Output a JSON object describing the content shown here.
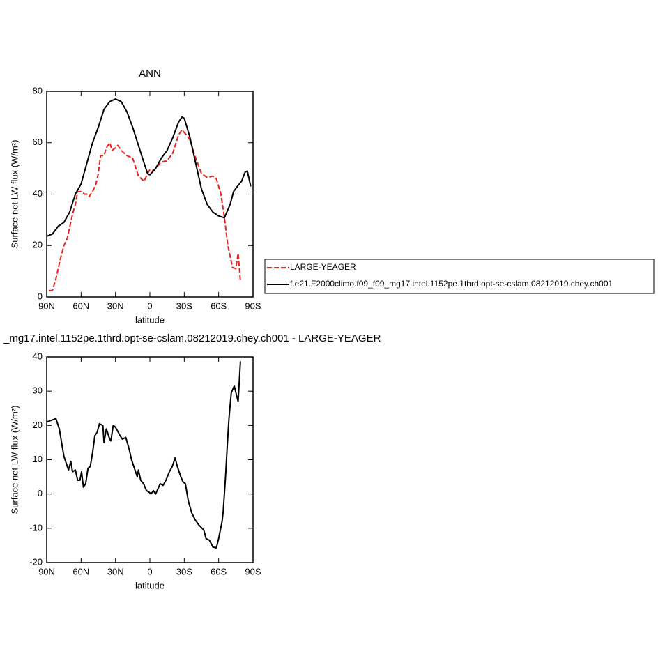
{
  "chart_data": [
    {
      "type": "line",
      "title": "ANN",
      "xlabel": "latitude",
      "ylabel": "Surface net LW flux (W/m²)",
      "xlim": [
        90,
        -90
      ],
      "ylim": [
        0,
        80
      ],
      "xticks": [
        {
          "value": 90,
          "label": "90N"
        },
        {
          "value": 60,
          "label": "60N"
        },
        {
          "value": 30,
          "label": "30N"
        },
        0,
        {
          "value": -30,
          "label": "30S"
        },
        {
          "value": -60,
          "label": "60S"
        },
        {
          "value": -90,
          "label": "90S"
        }
      ],
      "yticks": [
        0,
        20,
        40,
        60,
        80
      ],
      "series": [
        {
          "name": "LARGE-YEAGER",
          "color": "#e8231f",
          "dashed": true,
          "x": [
            88,
            85,
            82,
            78,
            75,
            72,
            70,
            67,
            65,
            63,
            60,
            57,
            55,
            53,
            50,
            47,
            45,
            43,
            40,
            38,
            35,
            33,
            30,
            28,
            25,
            20,
            15,
            10,
            5,
            2,
            0,
            -3,
            -7,
            -10,
            -15,
            -20,
            -25,
            -28,
            -32,
            -35,
            -40,
            -45,
            -50,
            -55,
            -58,
            -62,
            -65,
            -68,
            -70,
            -72,
            -75,
            -77,
            -79
          ],
          "values": [
            2.5,
            2.5,
            7,
            15,
            20,
            23,
            27,
            33,
            36,
            41,
            41,
            40,
            40,
            39,
            41,
            44,
            48,
            55,
            55,
            58,
            60,
            57,
            58,
            59,
            57,
            55,
            54,
            47,
            45,
            48,
            49.5,
            49,
            51,
            52.5,
            53,
            56,
            63,
            65,
            63,
            61,
            54,
            48,
            46.5,
            47,
            46,
            40,
            31,
            20,
            16,
            11.5,
            11,
            17,
            6
          ]
        },
        {
          "name": "f.e21.F2000climo.f09_f09_mg17.intel.1152pe.1thrd.opt-se-cslam.08212019.chey.ch001",
          "color": "#000000",
          "dashed": false,
          "x": [
            90,
            85,
            80,
            75,
            70,
            65,
            60,
            55,
            50,
            45,
            40,
            35,
            30,
            25,
            20,
            15,
            10,
            5,
            2,
            0,
            -5,
            -10,
            -15,
            -20,
            -25,
            -28,
            -30,
            -35,
            -40,
            -45,
            -50,
            -55,
            -60,
            -65,
            -70,
            -73,
            -78,
            -80,
            -83,
            -85,
            -88
          ],
          "values": [
            23.6,
            24.5,
            27.5,
            29,
            33,
            40,
            44,
            52,
            60,
            66,
            73,
            76,
            77,
            76,
            72,
            66,
            59,
            52,
            48,
            47.5,
            50,
            54,
            57,
            62,
            68,
            70,
            69.5,
            62,
            52,
            42,
            36,
            33,
            31.5,
            30.8,
            36,
            41,
            44,
            45,
            48.5,
            49,
            43
          ]
        }
      ]
    },
    {
      "type": "line",
      "title": "_mg17.intel.1152pe.1thrd.opt-se-cslam.08212019.chey.ch001 - LARGE-YEAGER",
      "xlabel": "latitude",
      "ylabel": "Surface net LW flux (W/m²)",
      "xlim": [
        90,
        -90
      ],
      "ylim": [
        -20,
        40
      ],
      "xticks": [
        {
          "value": 90,
          "label": "90N"
        },
        {
          "value": 60,
          "label": "60N"
        },
        {
          "value": 30,
          "label": "30N"
        },
        0,
        {
          "value": -30,
          "label": "30S"
        },
        {
          "value": -60,
          "label": "60S"
        },
        {
          "value": -90,
          "label": "90S"
        }
      ],
      "yticks": [
        -20,
        -10,
        0,
        10,
        20,
        30,
        40
      ],
      "series": [
        {
          "color": "#000000",
          "dashed": false,
          "x": [
            90,
            82,
            79,
            75,
            71,
            69,
            67.5,
            65,
            63,
            61,
            59.6,
            58,
            56,
            54,
            52,
            50,
            48,
            46,
            44,
            41,
            40,
            38,
            35,
            34,
            32,
            30,
            26,
            24,
            21,
            18,
            16,
            13,
            11,
            10,
            8,
            5.5,
            3,
            0.5,
            -1,
            -3,
            -5,
            -9,
            -11.5,
            -14,
            -17,
            -19.5,
            -22,
            -24,
            -27,
            -29,
            -31,
            -33.5,
            -36.5,
            -39.5,
            -42.6,
            -47,
            -49,
            -52,
            -55,
            -58,
            -60,
            -63,
            -64,
            -66,
            -67.5,
            -69,
            -71,
            -73.6,
            -77,
            -79
          ],
          "values": [
            21,
            22,
            19,
            11,
            7,
            9.5,
            6.5,
            7,
            4,
            4,
            6.5,
            2,
            3,
            7.5,
            8,
            12,
            17,
            18,
            20.5,
            20,
            15,
            19,
            16,
            15.5,
            20,
            19.5,
            17,
            16,
            16.5,
            13,
            10,
            7,
            5,
            7,
            4,
            3,
            1,
            0.5,
            0,
            1,
            0,
            3,
            2.5,
            4,
            6.5,
            8,
            10.5,
            8,
            5,
            3.5,
            3,
            -2,
            -5.5,
            -7.5,
            -9,
            -10.5,
            -13,
            -13.5,
            -15.5,
            -15.7,
            -13,
            -8,
            -5,
            5,
            14,
            22,
            29.5,
            31.5,
            27,
            38.7
          ]
        }
      ]
    }
  ]
}
